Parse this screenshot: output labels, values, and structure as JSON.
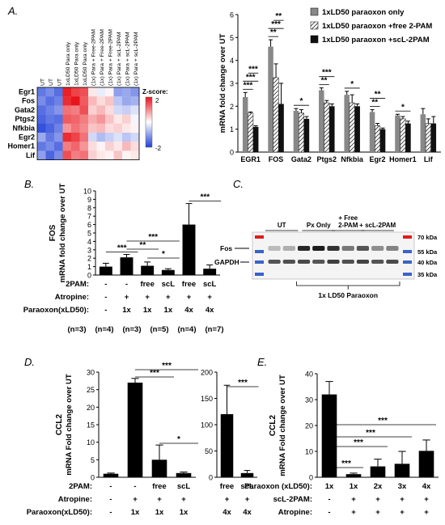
{
  "panel_labels": {
    "a": "A.",
    "b": "B.",
    "c": "C.",
    "d": "D.",
    "e": "E."
  },
  "heatmap": {
    "type": "heatmap",
    "genes": [
      "Egr1",
      "Fos",
      "Gata2",
      "Ptgs2",
      "Nfkbia",
      "Egr2",
      "Homer1",
      "Lif"
    ],
    "columns": [
      "UT",
      "UT",
      "UT",
      "1xLD50 Para only",
      "1xLD50 Para only",
      "1xLD50 Para only",
      "(1x) Para + Free-2PAM",
      "(1x) Para + Free-2PAM",
      "(1x) Para + Free-2PAM",
      "(1x) Para + scL-2PAM",
      "(1x) Para + scL-2PAM",
      "(1x) Para + scL-2PAM"
    ],
    "values": [
      [
        -1.4,
        -1.2,
        -1.5,
        1.9,
        1.6,
        1.5,
        0.2,
        -0.2,
        0.1,
        -1.0,
        -0.9,
        -1.1
      ],
      [
        -1.2,
        -1.5,
        -1.3,
        1.8,
        2.0,
        1.4,
        0.6,
        0.3,
        0.5,
        -0.6,
        -0.9,
        -0.8
      ],
      [
        -1.5,
        -1.3,
        -1.1,
        1.2,
        1.1,
        1.5,
        0.4,
        0.6,
        0.3,
        -0.4,
        -0.5,
        -0.3
      ],
      [
        -1.6,
        -1.4,
        -1.5,
        1.4,
        1.3,
        1.1,
        0.7,
        0.9,
        0.5,
        0.2,
        0.4,
        -0.1
      ],
      [
        -1.8,
        -1.6,
        -1.3,
        0.9,
        1.2,
        1.0,
        0.5,
        0.6,
        0.3,
        0.4,
        0.2,
        0.1
      ],
      [
        -0.9,
        -1.4,
        -1.1,
        1.8,
        1.6,
        1.2,
        -0.4,
        -0.7,
        -0.5,
        -0.3,
        -0.6,
        -0.4
      ],
      [
        -1.4,
        -1.2,
        -1.5,
        1.1,
        1.3,
        0.9,
        0.3,
        0.1,
        0.4,
        0.2,
        0.6,
        0.3
      ],
      [
        -1.0,
        -1.6,
        -1.2,
        1.5,
        1.1,
        1.2,
        0.4,
        0.2,
        0.1,
        0.5,
        0.1,
        0.2
      ]
    ],
    "scale_title": "Z-score:",
    "scale_max": "2",
    "scale_min": "-2",
    "color_high": "#e8141c",
    "color_mid": "#ffffff",
    "color_low": "#1f3fd9"
  },
  "chart_data": [
    {
      "type": "bar",
      "panel": "A",
      "ylabel": "mRNA fold change over UT",
      "ylim": [
        0,
        6
      ],
      "yticks": [
        0,
        1,
        2,
        3,
        4,
        5,
        6
      ],
      "categories": [
        "EGR1",
        "FOS",
        "Gata2",
        "Ptgs2",
        "Nfkbia",
        "Egr2",
        "Homer1",
        "Lif"
      ],
      "series": [
        {
          "name": "1xLD50 paraoxon only",
          "color": "#888888",
          "pattern": "solid",
          "values": [
            2.4,
            4.6,
            1.8,
            2.7,
            2.5,
            1.75,
            1.6,
            1.65
          ],
          "errors": [
            0.2,
            0.3,
            0.1,
            0.1,
            0.15,
            0.1,
            0.05,
            0.25
          ]
        },
        {
          "name": "1xLD50 paraoxon +free 2-PAM",
          "color": "#ffffff",
          "pattern": "hatched",
          "values": [
            1.7,
            3.25,
            1.7,
            2.15,
            2.15,
            1.15,
            1.45,
            1.25
          ],
          "errors": [
            0.05,
            0.6,
            0.15,
            0.1,
            0.35,
            0.1,
            0.1,
            0.2
          ]
        },
        {
          "name": "1xLD50 paraoxon +scL-2PAM",
          "color": "#111111",
          "pattern": "solid",
          "values": [
            1.1,
            2.1,
            1.45,
            2.0,
            2.0,
            1.0,
            1.25,
            1.25
          ],
          "errors": [
            0.05,
            0.9,
            0.1,
            0.1,
            0.1,
            0.05,
            0.1,
            0.3
          ]
        }
      ],
      "legend_position": "top-right",
      "significance": [
        {
          "label": "***",
          "group": 0,
          "from": 0,
          "to": 1
        },
        {
          "label": "***",
          "group": 0,
          "from": 0,
          "to": 2
        },
        {
          "label": "***",
          "group": 0,
          "from": 1,
          "to": 2
        },
        {
          "label": "**",
          "group": 1,
          "from": 0,
          "to": 1
        },
        {
          "label": "***",
          "group": 1,
          "from": 0,
          "to": 2
        },
        {
          "label": "**",
          "group": 1,
          "from": 1,
          "to": 2
        },
        {
          "label": "*",
          "group": 2,
          "from": 0,
          "to": 2
        },
        {
          "label": "**",
          "group": 3,
          "from": 0,
          "to": 1
        },
        {
          "label": "***",
          "group": 3,
          "from": 0,
          "to": 2
        },
        {
          "label": "*",
          "group": 4,
          "from": 0,
          "to": 2
        },
        {
          "label": "**",
          "group": 5,
          "from": 0,
          "to": 1
        },
        {
          "label": "**",
          "group": 5,
          "from": 0,
          "to": 2
        },
        {
          "label": "*",
          "group": 6,
          "from": 0,
          "to": 2
        }
      ]
    },
    {
      "type": "bar",
      "panel": "B",
      "title": "FOS",
      "ylabel": "mRNA fold change over UT",
      "ylim": [
        0,
        10
      ],
      "yticks": [
        0,
        1,
        2,
        3,
        4,
        5,
        6,
        7,
        8,
        9,
        10
      ],
      "values": [
        1.0,
        2.1,
        1.1,
        0.6,
        6.0,
        0.75
      ],
      "errors": [
        0.4,
        0.35,
        0.45,
        0.15,
        2.5,
        0.45
      ],
      "conditions": {
        "labels": [
          "2PAM:",
          "Atropine:",
          "Paraoxon(xLD50):"
        ],
        "rows": [
          [
            "-",
            "-",
            "free",
            "scL",
            "free",
            "scL"
          ],
          [
            "-",
            "+",
            "+",
            "+",
            "+",
            "+"
          ],
          [
            "-",
            "1x",
            "1x",
            "1x",
            "4x",
            "4x"
          ]
        ]
      },
      "n_values": [
        "(n=3)",
        "(n=4)",
        "(n=3)",
        "(n=5)",
        "(n=4)",
        "(n=7)"
      ],
      "significance": [
        {
          "label": "***",
          "from": 0,
          "to": 1
        },
        {
          "label": "**",
          "from": 1,
          "to": 2
        },
        {
          "label": "***",
          "from": 1,
          "to": 3
        },
        {
          "label": "*",
          "from": 2,
          "to": 3
        },
        {
          "label": "***",
          "from": 4,
          "to": 5
        }
      ]
    },
    {
      "type": "bar",
      "panel": "D",
      "ylabel": "mRNA Fold change over UT",
      "title": "CCL2",
      "ylim": [
        0,
        30
      ],
      "yticks": [
        0,
        5,
        10,
        15,
        20,
        25,
        30
      ],
      "values": [
        1.0,
        27.0,
        5.0,
        1.2
      ],
      "errors": [
        0.2,
        1.2,
        4.2,
        0.3
      ],
      "conditions": {
        "labels": [
          "2PAM:",
          "Atropine:",
          "Paraoxon(xLD50):"
        ],
        "rows": [
          [
            "-",
            "-",
            "free",
            "scL"
          ],
          [
            "-",
            "+",
            "+",
            "+"
          ],
          [
            "-",
            "1x",
            "1x",
            "1x"
          ]
        ]
      },
      "significance": [
        {
          "label": "***",
          "from": 1,
          "to": 2
        },
        {
          "label": "***",
          "from": 1,
          "to": 3
        },
        {
          "label": "*",
          "from": 2,
          "to": 3
        }
      ]
    },
    {
      "type": "bar",
      "panel": "D-inset",
      "ylim": [
        0,
        200
      ],
      "yticks": [
        0,
        50,
        100,
        150,
        200
      ],
      "values": [
        120,
        8
      ],
      "errors": [
        55,
        5
      ],
      "conditions": {
        "rows": [
          [
            "free",
            "scL"
          ],
          [
            "+",
            "+"
          ],
          [
            "4x",
            "4x"
          ]
        ]
      },
      "significance": [
        {
          "label": "***",
          "from": 0,
          "to": 1
        }
      ]
    },
    {
      "type": "bar",
      "panel": "E",
      "ylabel": "mRNA Fold change over UT",
      "title": "CCL2",
      "ylim": [
        0,
        40
      ],
      "yticks": [
        0,
        10,
        20,
        30,
        40
      ],
      "values": [
        32,
        1.2,
        4.2,
        5.2,
        10.2
      ],
      "errors": [
        5,
        0.4,
        2.8,
        4.8,
        4.2
      ],
      "conditions": {
        "labels": [
          "Paraoxon (xLD50):",
          "scL-2PAM:",
          "Atropine:"
        ],
        "rows": [
          [
            "1x",
            "1x",
            "2x",
            "3x",
            "4x"
          ],
          [
            "-",
            "+",
            "+",
            "+",
            "+"
          ],
          [
            "-",
            "+",
            "+",
            "+",
            "+"
          ]
        ]
      },
      "significance": [
        {
          "label": "***",
          "from": 0,
          "to": 1
        },
        {
          "label": "***",
          "from": 0,
          "to": 2
        },
        {
          "label": "***",
          "from": 0,
          "to": 3
        },
        {
          "label": "***",
          "from": 0,
          "to": 4
        }
      ]
    }
  ],
  "blot": {
    "lane_groups": [
      "UT",
      "Px Only",
      "+ Free\n2-PAM",
      "+ scL-2PAM"
    ],
    "band_labels": [
      "Fos",
      "GAPDH"
    ],
    "markers": [
      "70 kDa",
      "55 kDa",
      "40 kDa",
      "35 kDa"
    ],
    "fos_intensity": [
      0.25,
      0.3,
      0.9,
      0.95,
      0.85,
      0.55,
      0.7,
      0.45,
      0.5
    ],
    "gapdh_intensity": [
      0.7,
      0.72,
      0.75,
      0.7,
      0.8,
      0.72,
      0.78,
      0.7,
      0.75
    ],
    "bracket_label": "1x LD50 Paraoxon",
    "color_red_marker": "#e41a1c",
    "color_blue_marker": "#3a63c8"
  }
}
